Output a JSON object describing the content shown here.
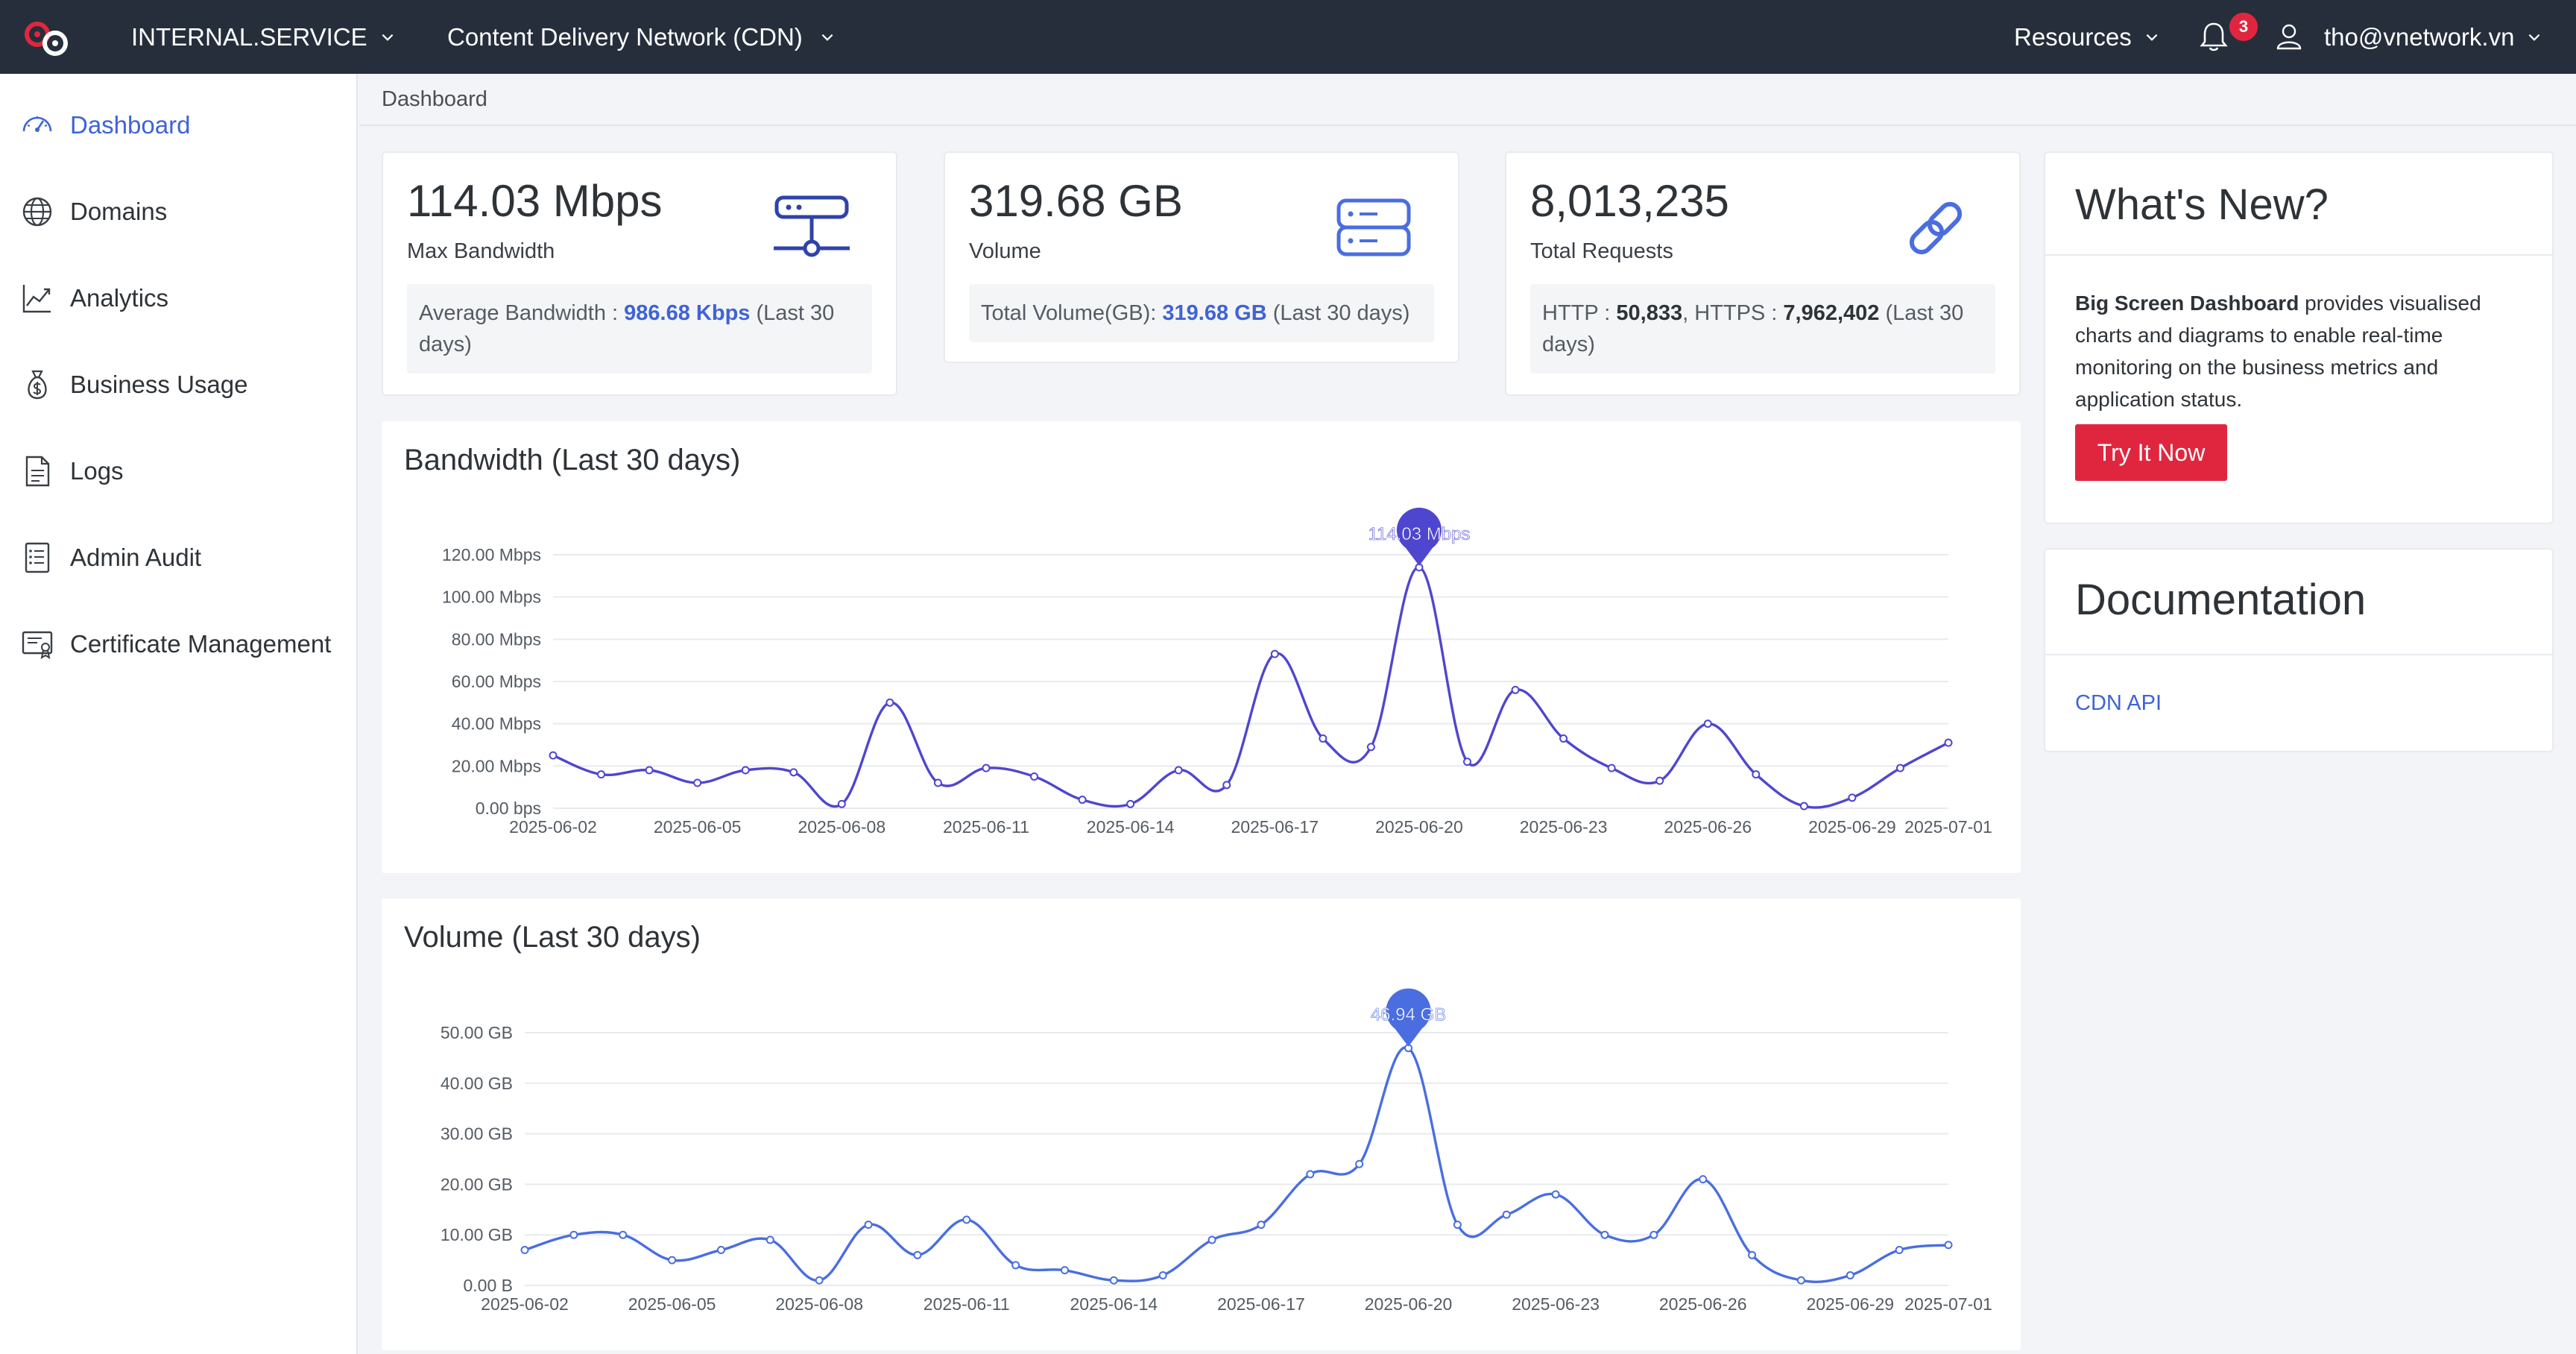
{
  "topbar": {
    "org_selector": "INTERNAL.SERVICE",
    "service_selector": "Content Delivery Network (CDN)",
    "resources_label": "Resources",
    "notification_count": "3",
    "user_email": "tho@vnetwork.vn"
  },
  "sidebar": {
    "items": [
      {
        "label": "Dashboard",
        "icon": "gauge-icon",
        "active": true
      },
      {
        "label": "Domains",
        "icon": "globe-icon"
      },
      {
        "label": "Analytics",
        "icon": "trend-chart-icon"
      },
      {
        "label": "Business Usage",
        "icon": "money-bag-icon"
      },
      {
        "label": "Logs",
        "icon": "document-icon"
      },
      {
        "label": "Admin Audit",
        "icon": "list-document-icon"
      },
      {
        "label": "Certificate Management",
        "icon": "certificate-icon"
      }
    ]
  },
  "breadcrumb": "Dashboard",
  "stats": {
    "bandwidth": {
      "value": "114.03 Mbps",
      "label": "Max Bandwidth",
      "detail_prefix": "Average Bandwidth : ",
      "detail_value": "986.68 Kbps",
      "detail_suffix": " (Last 30 days)"
    },
    "volume": {
      "value": "319.68 GB",
      "label": "Volume",
      "detail_prefix": "Total Volume(GB): ",
      "detail_value": "319.68 GB",
      "detail_suffix": " (Last 30 days)"
    },
    "requests": {
      "value": "8,013,235",
      "label": "Total Requests",
      "http_label": "HTTP : ",
      "http_value": "50,833",
      "https_label": ", HTTPS : ",
      "https_value": "7,962,402",
      "detail_suffix": " (Last 30 days)"
    }
  },
  "whats_new": {
    "title": "What's New?",
    "bold_text": "Big Screen Dashboard",
    "body_text": " provides visualised charts and diagrams to enable real-time monitoring on the business metrics and application status.",
    "button_label": "Try It Now"
  },
  "documentation": {
    "title": "Documentation",
    "link_label": "CDN API"
  },
  "colors": {
    "topbar": "#262e3b",
    "accent": "#3f63d6",
    "bandwidth_line": "#4f46cf",
    "volume_line": "#4a6ee0",
    "danger": "#e0263f"
  },
  "chart_data": [
    {
      "type": "line",
      "title": "Bandwidth (Last 30 days)",
      "x": [
        "2025-06-02",
        "2025-06-03",
        "2025-06-04",
        "2025-06-05",
        "2025-06-06",
        "2025-06-07",
        "2025-06-08",
        "2025-06-09",
        "2025-06-10",
        "2025-06-11",
        "2025-06-12",
        "2025-06-13",
        "2025-06-14",
        "2025-06-15",
        "2025-06-16",
        "2025-06-17",
        "2025-06-18",
        "2025-06-19",
        "2025-06-20",
        "2025-06-21",
        "2025-06-22",
        "2025-06-23",
        "2025-06-24",
        "2025-06-25",
        "2025-06-26",
        "2025-06-27",
        "2025-06-28",
        "2025-06-29",
        "2025-06-30",
        "2025-07-01"
      ],
      "x_tick_labels": [
        "2025-06-02",
        "2025-06-05",
        "2025-06-08",
        "2025-06-11",
        "2025-06-14",
        "2025-06-17",
        "2025-06-20",
        "2025-06-23",
        "2025-06-26",
        "2025-06-29",
        "2025-07-01"
      ],
      "values": [
        25,
        16,
        18,
        12,
        18,
        17,
        2,
        50,
        12,
        19,
        15,
        4,
        2,
        18,
        11,
        73,
        33,
        29,
        114.03,
        22,
        56,
        33,
        19,
        13,
        40,
        16,
        1,
        5,
        19,
        31
      ],
      "unit": "Mbps",
      "ylim": [
        0,
        120
      ],
      "y_tick_labels": [
        "0.00 bps",
        "20.00 Mbps",
        "40.00 Mbps",
        "60.00 Mbps",
        "80.00 Mbps",
        "100.00 Mbps",
        "120.00 Mbps"
      ],
      "peak_label": "114.03 Mbps",
      "grid": true
    },
    {
      "type": "line",
      "title": "Volume (Last 30 days)",
      "x": [
        "2025-06-02",
        "2025-06-03",
        "2025-06-04",
        "2025-06-05",
        "2025-06-06",
        "2025-06-07",
        "2025-06-08",
        "2025-06-09",
        "2025-06-10",
        "2025-06-11",
        "2025-06-12",
        "2025-06-13",
        "2025-06-14",
        "2025-06-15",
        "2025-06-16",
        "2025-06-17",
        "2025-06-18",
        "2025-06-19",
        "2025-06-20",
        "2025-06-21",
        "2025-06-22",
        "2025-06-23",
        "2025-06-24",
        "2025-06-25",
        "2025-06-26",
        "2025-06-27",
        "2025-06-28",
        "2025-06-29",
        "2025-06-30",
        "2025-07-01"
      ],
      "x_tick_labels": [
        "2025-06-02",
        "2025-06-05",
        "2025-06-08",
        "2025-06-11",
        "2025-06-14",
        "2025-06-17",
        "2025-06-20",
        "2025-06-23",
        "2025-06-26",
        "2025-06-29",
        "2025-07-01"
      ],
      "values": [
        7,
        10,
        10,
        5,
        7,
        9,
        1,
        12,
        6,
        13,
        4,
        3,
        1,
        2,
        9,
        12,
        22,
        24,
        46.94,
        12,
        14,
        18,
        10,
        10,
        21,
        6,
        1,
        2,
        7,
        8
      ],
      "unit": "GB",
      "ylim": [
        0,
        50
      ],
      "y_tick_labels": [
        "0.00 B",
        "10.00 GB",
        "20.00 GB",
        "30.00 GB",
        "40.00 GB",
        "50.00 GB"
      ],
      "peak_label": "46.94 GB",
      "grid": true
    }
  ]
}
